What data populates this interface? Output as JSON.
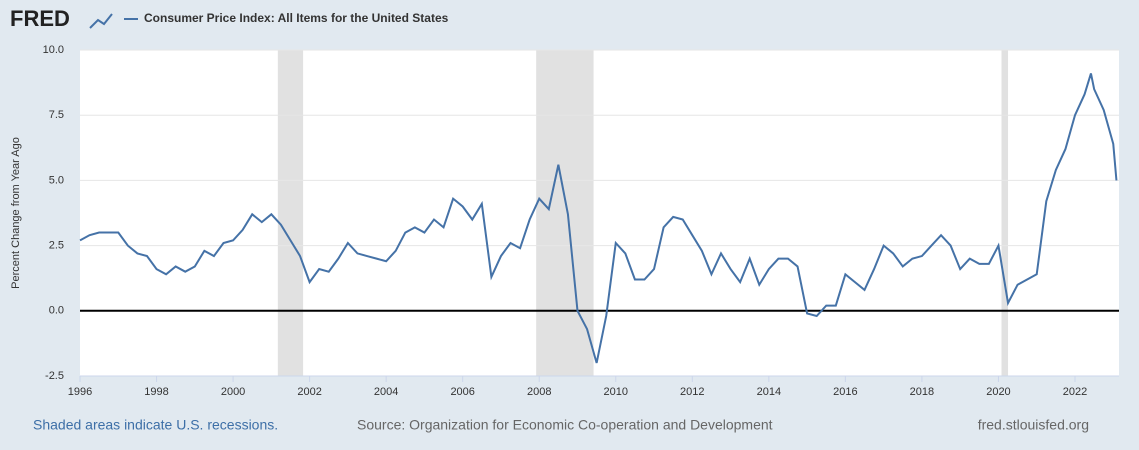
{
  "logo": "FRED",
  "chart_data": {
    "type": "line",
    "y_label": "Percent Change from Year Ago",
    "x": [
      1996.0,
      1996.25,
      1996.5,
      1996.75,
      1997.0,
      1997.25,
      1997.5,
      1997.75,
      1998.0,
      1998.25,
      1998.5,
      1998.75,
      1999.0,
      1999.25,
      1999.5,
      1999.75,
      2000.0,
      2000.25,
      2000.5,
      2000.75,
      2001.0,
      2001.25,
      2001.5,
      2001.75,
      2002.0,
      2002.25,
      2002.5,
      2002.75,
      2003.0,
      2003.25,
      2003.5,
      2003.75,
      2004.0,
      2004.25,
      2004.5,
      2004.75,
      2005.0,
      2005.25,
      2005.5,
      2005.75,
      2006.0,
      2006.25,
      2006.5,
      2006.75,
      2007.0,
      2007.25,
      2007.5,
      2007.75,
      2008.0,
      2008.25,
      2008.5,
      2008.75,
      2009.0,
      2009.25,
      2009.5,
      2009.75,
      2010.0,
      2010.25,
      2010.5,
      2010.75,
      2011.0,
      2011.25,
      2011.5,
      2011.75,
      2012.0,
      2012.25,
      2012.5,
      2012.75,
      2013.0,
      2013.25,
      2013.5,
      2013.75,
      2014.0,
      2014.25,
      2014.5,
      2014.75,
      2015.0,
      2015.25,
      2015.5,
      2015.75,
      2016.0,
      2016.25,
      2016.5,
      2016.75,
      2017.0,
      2017.25,
      2017.5,
      2017.75,
      2018.0,
      2018.25,
      2018.5,
      2018.75,
      2019.0,
      2019.25,
      2019.5,
      2019.75,
      2020.0,
      2020.25,
      2020.5,
      2020.75,
      2021.0,
      2021.25,
      2021.5,
      2021.75,
      2022.0,
      2022.25,
      2022.417,
      2022.5,
      2022.75,
      2023.0,
      2023.083
    ],
    "series": [
      {
        "name": "Consumer Price Index: All Items for the United States",
        "color": "#4572a7",
        "values": [
          2.7,
          2.9,
          3.0,
          3.0,
          3.0,
          2.5,
          2.2,
          2.1,
          1.6,
          1.4,
          1.7,
          1.5,
          1.7,
          2.3,
          2.1,
          2.6,
          2.7,
          3.1,
          3.7,
          3.4,
          3.7,
          3.3,
          2.7,
          2.1,
          1.1,
          1.6,
          1.5,
          2.0,
          2.6,
          2.2,
          2.1,
          2.0,
          1.9,
          2.3,
          3.0,
          3.2,
          3.0,
          3.5,
          3.2,
          4.3,
          4.0,
          3.5,
          4.1,
          1.3,
          2.1,
          2.6,
          2.4,
          3.5,
          4.3,
          3.9,
          5.6,
          3.7,
          0.0,
          -0.7,
          -2.0,
          -0.2,
          2.6,
          2.2,
          1.2,
          1.2,
          1.6,
          3.2,
          3.6,
          3.5,
          2.9,
          2.3,
          1.4,
          2.2,
          1.6,
          1.1,
          2.0,
          1.0,
          1.6,
          2.0,
          2.0,
          1.7,
          -0.1,
          -0.2,
          0.2,
          0.2,
          1.4,
          1.1,
          0.8,
          1.6,
          2.5,
          2.2,
          1.7,
          2.0,
          2.1,
          2.5,
          2.9,
          2.5,
          1.6,
          2.0,
          1.8,
          1.8,
          2.5,
          0.3,
          1.0,
          1.2,
          1.4,
          4.2,
          5.4,
          6.2,
          7.5,
          8.3,
          9.1,
          8.5,
          7.7,
          6.4,
          5.0
        ]
      }
    ],
    "recessions": [
      [
        2001.17,
        2001.83
      ],
      [
        2007.92,
        2009.42
      ],
      [
        2020.08,
        2020.25
      ]
    ],
    "xlim": [
      1996,
      2023.15
    ],
    "xticks": [
      1996,
      1998,
      2000,
      2002,
      2004,
      2006,
      2008,
      2010,
      2012,
      2014,
      2016,
      2018,
      2020,
      2022
    ],
    "ylim": [
      -2.5,
      10
    ],
    "yticks": [
      {
        "value": -2.5,
        "label": "-2.5"
      },
      {
        "value": 0,
        "label": "0.0"
      },
      {
        "value": 2.5,
        "label": "2.5"
      },
      {
        "value": 5,
        "label": "5.0"
      },
      {
        "value": 7.5,
        "label": "7.5"
      },
      {
        "value": 10,
        "label": "10.0"
      }
    ],
    "grid": true,
    "recession_note": "Shaded areas indicate U.S. recessions.",
    "source": "Source: Organization for Economic Co-operation and Development",
    "site": "fred.stlouisfed.org"
  }
}
